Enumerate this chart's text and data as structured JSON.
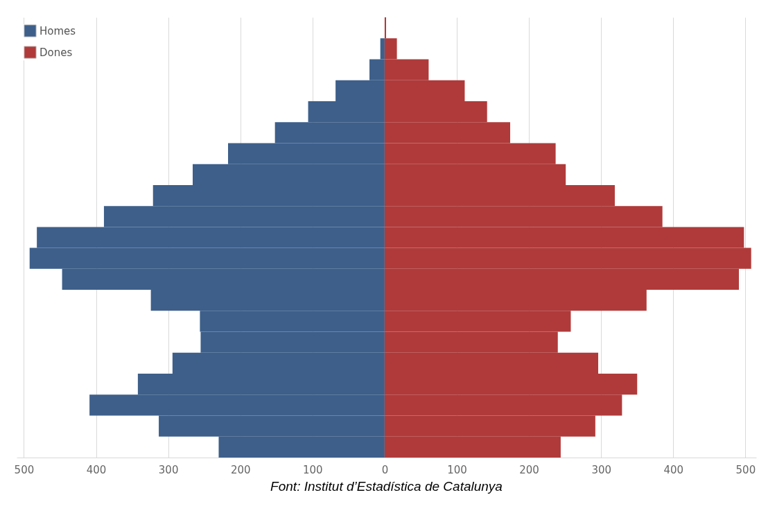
{
  "chart_data": {
    "type": "bar",
    "orientation": "horizontal",
    "stacked": true,
    "categories": [
      null,
      null,
      null,
      null,
      null,
      null,
      null,
      null,
      null,
      null,
      null,
      null,
      null,
      null,
      null,
      null,
      null,
      null,
      null,
      null,
      null
    ],
    "series": [
      {
        "name": "Homes",
        "color": "#3d5f8a",
        "values": [
          0,
          -6,
          -21,
          -68,
          -106,
          -152,
          -217,
          -266,
          -321,
          -389,
          -482,
          -492,
          -447,
          -324,
          -256,
          -255,
          -294,
          -342,
          -409,
          -313,
          -230
        ]
      },
      {
        "name": "Dones",
        "color": "#b03a3a",
        "values": [
          2,
          17,
          61,
          111,
          142,
          174,
          237,
          251,
          319,
          385,
          498,
          508,
          491,
          363,
          258,
          240,
          296,
          350,
          329,
          292,
          244
        ]
      }
    ],
    "xlim": [
      -510,
      515
    ],
    "xticks": [
      {
        "value": -500,
        "label": "500"
      },
      {
        "value": -400,
        "label": "400"
      },
      {
        "value": -300,
        "label": "300"
      },
      {
        "value": -200,
        "label": "200"
      },
      {
        "value": -100,
        "label": "100"
      },
      0,
      100,
      200,
      300,
      400,
      500
    ],
    "grid": "x",
    "legend": "top left",
    "annotations": [
      "Font: Institut d’Estadística de Catalunya"
    ]
  }
}
